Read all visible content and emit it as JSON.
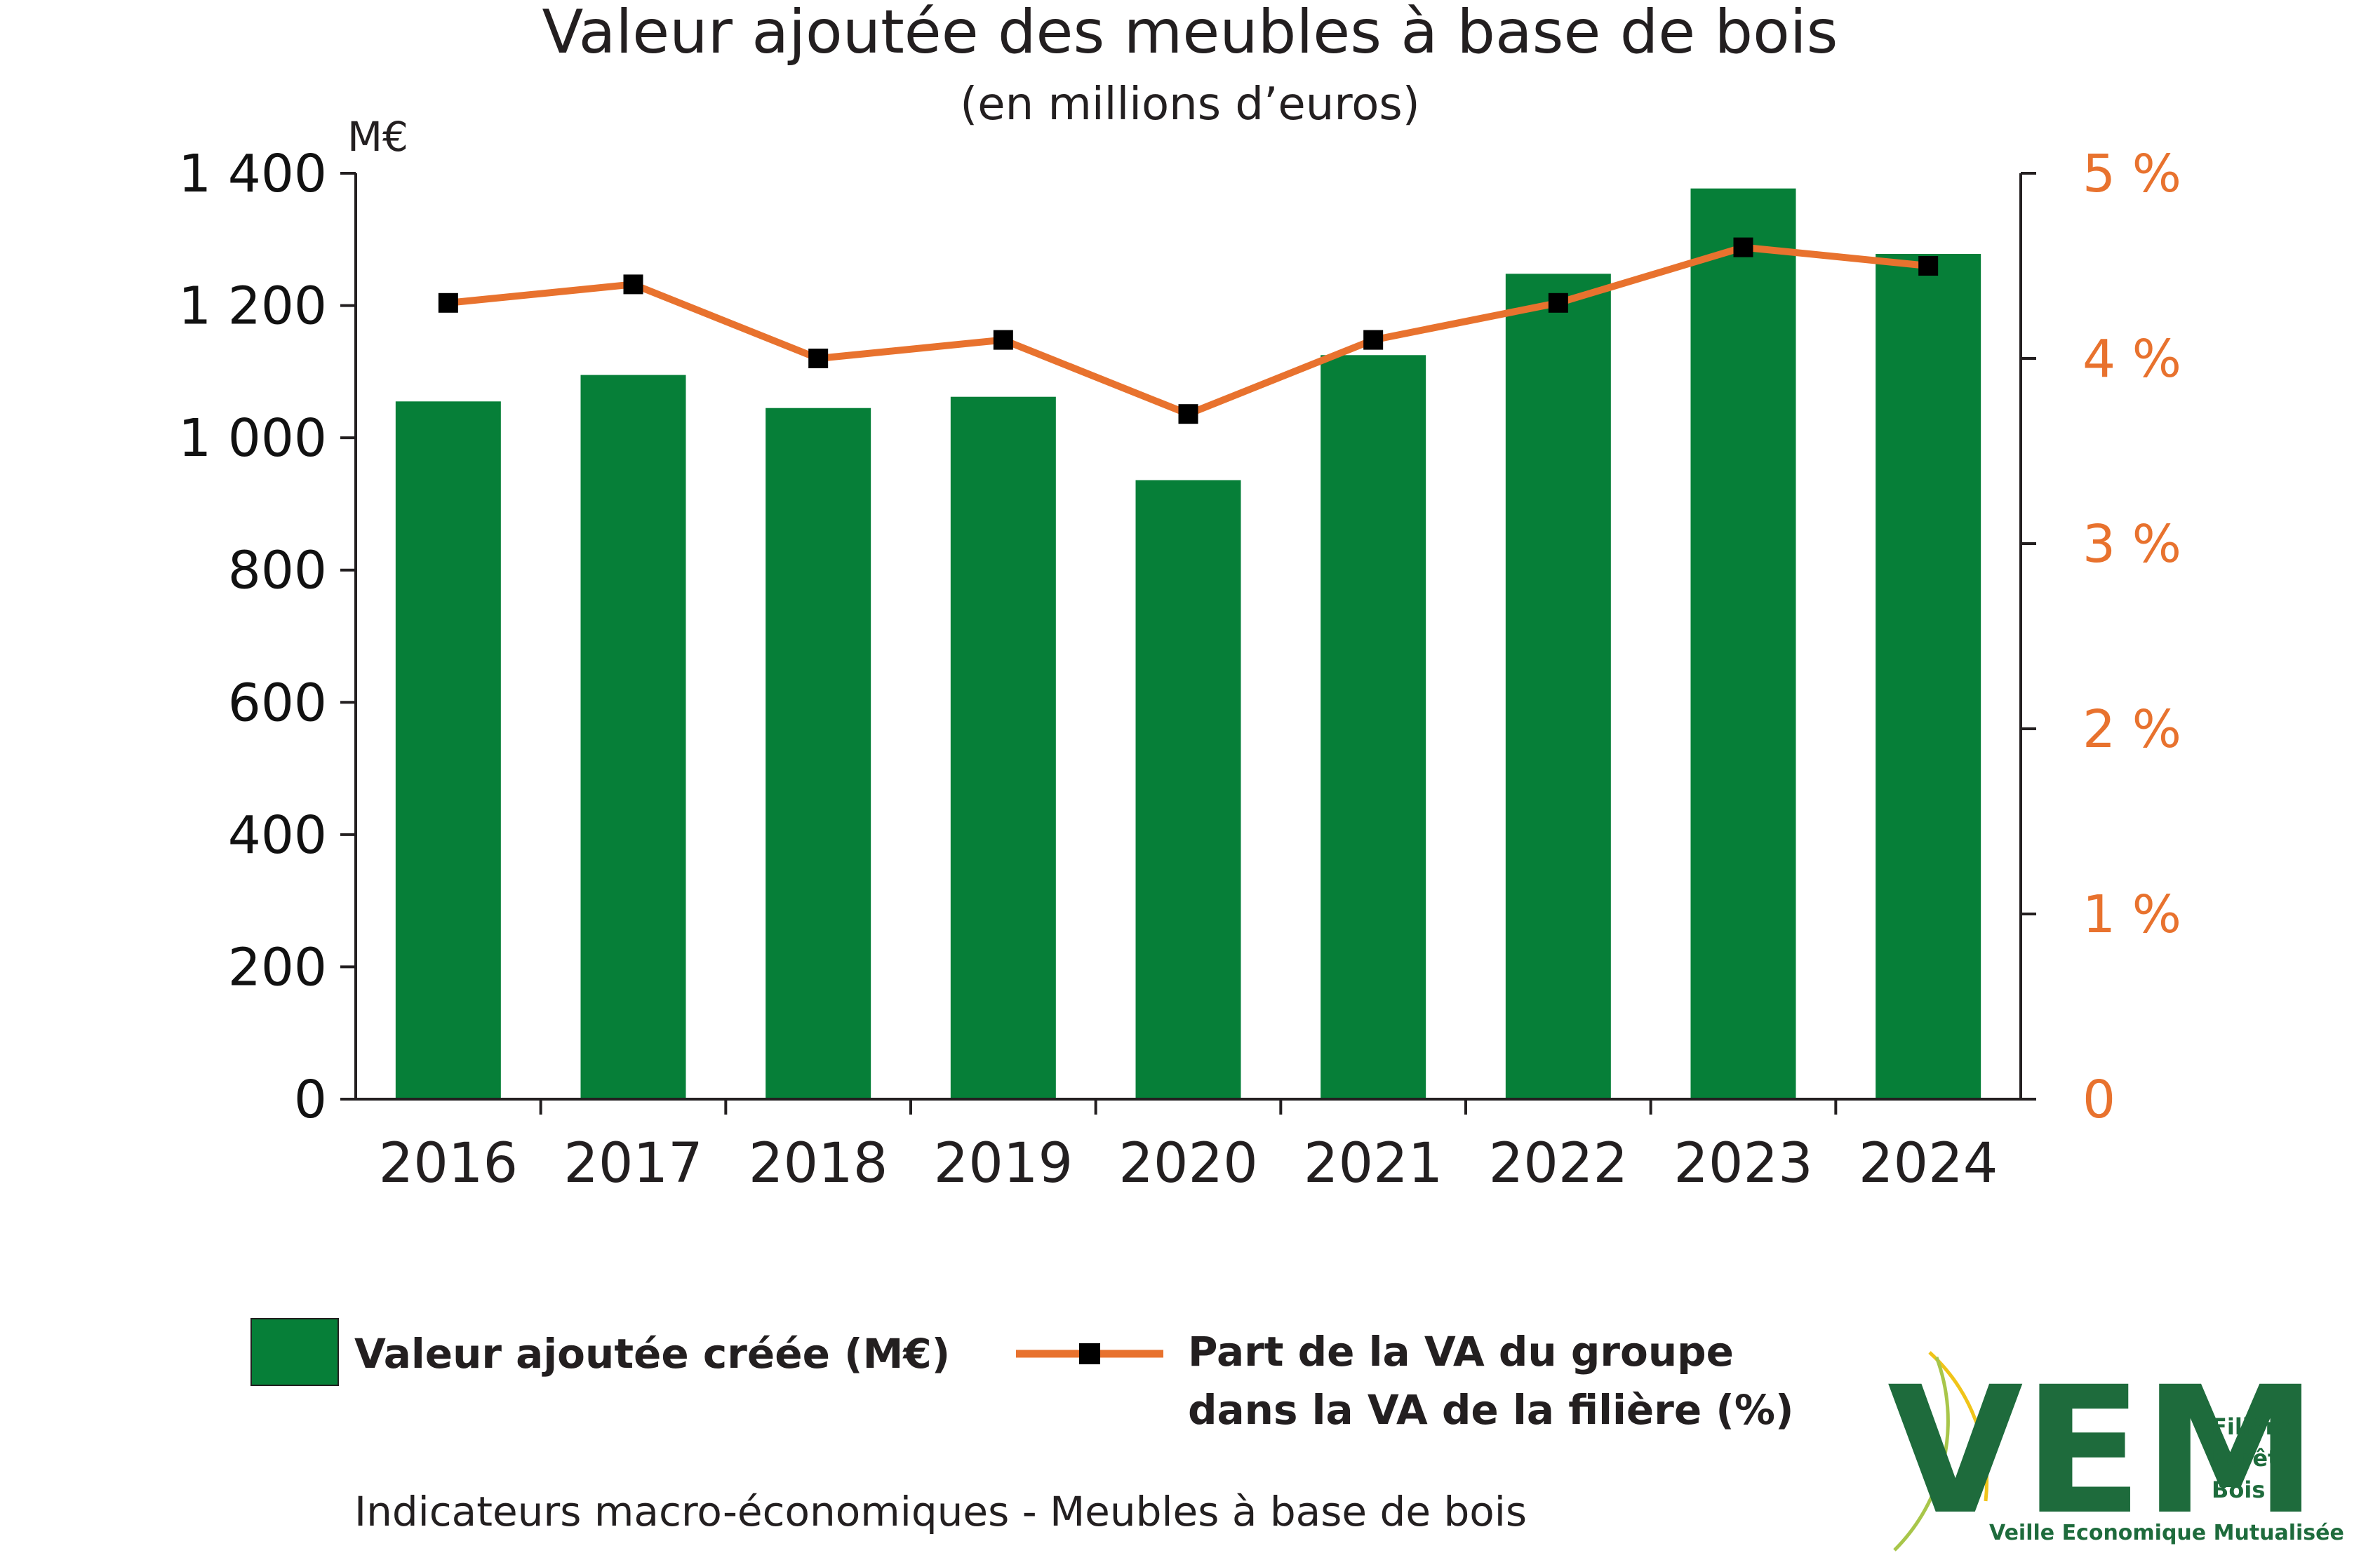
{
  "colors": {
    "bar": "#067f38",
    "line": "#e8722e",
    "marker": "#000000",
    "axis": "#231f20",
    "logo_green": "#1e6b3c",
    "logo_yellow": "#f0c419",
    "logo_lightgreen": "#a8c64a"
  },
  "chart_data": {
    "type": "bar",
    "title": "Valeur ajoutée des meubles à base de bois",
    "subtitle": "(en millions d’euros)",
    "ylabel": "M€",
    "categories": [
      "2016",
      "2017",
      "2018",
      "2019",
      "2020",
      "2021",
      "2022",
      "2023",
      "2024"
    ],
    "ylim": [
      0,
      1400
    ],
    "yticks": [
      0,
      200,
      400,
      600,
      800,
      1000,
      1200,
      1400
    ],
    "ytick_labels": [
      "0",
      "200",
      "400",
      "600",
      "800",
      "1 000",
      "1 200",
      "1 400"
    ],
    "y2lim": [
      0,
      5
    ],
    "y2ticks": [
      0,
      1,
      2,
      3,
      4,
      5
    ],
    "y2tick_labels": [
      "0",
      "1 %",
      "2 %",
      "3 %",
      "4 %",
      "5 %"
    ],
    "grid": false,
    "legend_position": "bottom",
    "series": [
      {
        "name": "Valeur ajoutée créée (M€)",
        "type": "bar",
        "axis": "left",
        "values": [
          1055,
          1095,
          1045,
          1062,
          936,
          1125,
          1248,
          1377,
          1278
        ]
      },
      {
        "name": "Part de la VA du groupe dans la VA de la filière (%)",
        "name_lines": [
          "Part de la VA du groupe",
          "dans la VA de la filière (%)"
        ],
        "type": "line",
        "axis": "right",
        "values": [
          4.3,
          4.4,
          4.0,
          4.1,
          3.7,
          4.1,
          4.3,
          4.6,
          4.5
        ]
      }
    ]
  },
  "footer": "Indicateurs macro-économiques - Meubles à base de bois",
  "logo": {
    "letters": "VEM",
    "line1": "Filière",
    "line2": "Forêt",
    "line3": "Bois",
    "tagline": "Veille Economique Mutualisée"
  }
}
